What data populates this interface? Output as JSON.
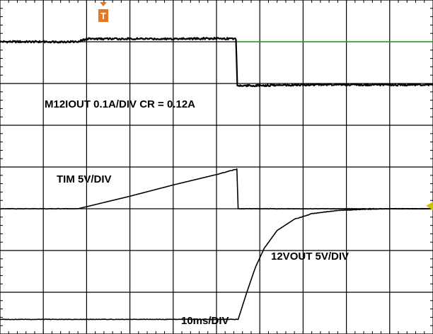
{
  "chart_data": {
    "type": "line",
    "title": "",
    "xlabel": "",
    "ylabel": "",
    "grid": true,
    "x_divisions": 10,
    "y_divisions": 8,
    "annotations": {
      "current_label": "M12IOUT 0.1A/DIV CR = 0.12A",
      "tim_label": "TIM 5V/DIV",
      "vout_label": "12VOUT 5V/DIV",
      "timebase_label": "10ms/DIV"
    },
    "trigger_marker": "T",
    "series": [
      {
        "name": "M12IOUT",
        "color": "#000000",
        "x": [
          0,
          1.0,
          1.8,
          2.0,
          3.0,
          4.0,
          5.0,
          5.45,
          5.48,
          6.0,
          7.0,
          8.0,
          9.0,
          10.0
        ],
        "y": [
          7.0,
          7.0,
          7.0,
          7.07,
          7.07,
          7.07,
          7.08,
          7.07,
          5.95,
          5.95,
          5.97,
          5.97,
          5.97,
          5.97
        ]
      },
      {
        "name": "TIM",
        "color": "#000000",
        "x": [
          0,
          1.0,
          1.8,
          3.0,
          4.0,
          5.0,
          5.47,
          5.5,
          6.0,
          7.0,
          8.0,
          9.0,
          10.0
        ],
        "y": [
          3.0,
          3.0,
          3.0,
          3.3,
          3.57,
          3.82,
          3.95,
          3.0,
          3.0,
          3.0,
          3.0,
          3.0,
          3.0
        ]
      },
      {
        "name": "12VOUT",
        "color": "#000000",
        "x": [
          0,
          2.0,
          4.0,
          5.5,
          5.7,
          5.9,
          6.1,
          6.4,
          6.8,
          7.2,
          7.8,
          8.5,
          9.0,
          10.0
        ],
        "y": [
          0.35,
          0.35,
          0.35,
          0.35,
          1.0,
          1.6,
          2.05,
          2.48,
          2.75,
          2.88,
          2.96,
          2.99,
          3.0,
          3.0
        ]
      }
    ],
    "reference_line": {
      "color": "#2fa52f",
      "y": 7.0,
      "x_start": 5.45,
      "x_end": 10.0
    },
    "marker_colors": {
      "trigger": "#e87722",
      "ground": "#c8c800"
    }
  }
}
